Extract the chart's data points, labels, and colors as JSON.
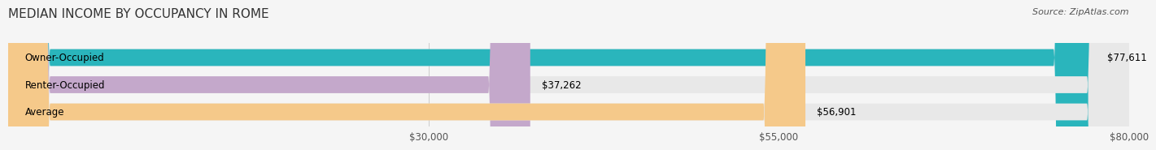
{
  "title": "MEDIAN INCOME BY OCCUPANCY IN ROME",
  "source": "Source: ZipAtlas.com",
  "categories": [
    "Owner-Occupied",
    "Renter-Occupied",
    "Average"
  ],
  "values": [
    77611,
    37262,
    56901
  ],
  "bar_colors": [
    "#2ab5bc",
    "#c4a8cb",
    "#f5c98a"
  ],
  "bar_labels": [
    "$77,611",
    "$37,262",
    "$56,901"
  ],
  "xlim": [
    0,
    80000
  ],
  "xticks": [
    30000,
    55000,
    80000
  ],
  "xtick_labels": [
    "$30,000",
    "$55,000",
    "$80,000"
  ],
  "bg_color": "#f5f5f5",
  "bar_bg_color": "#e8e8e8",
  "title_fontsize": 11,
  "label_fontsize": 8.5,
  "tick_fontsize": 8.5,
  "source_fontsize": 8
}
